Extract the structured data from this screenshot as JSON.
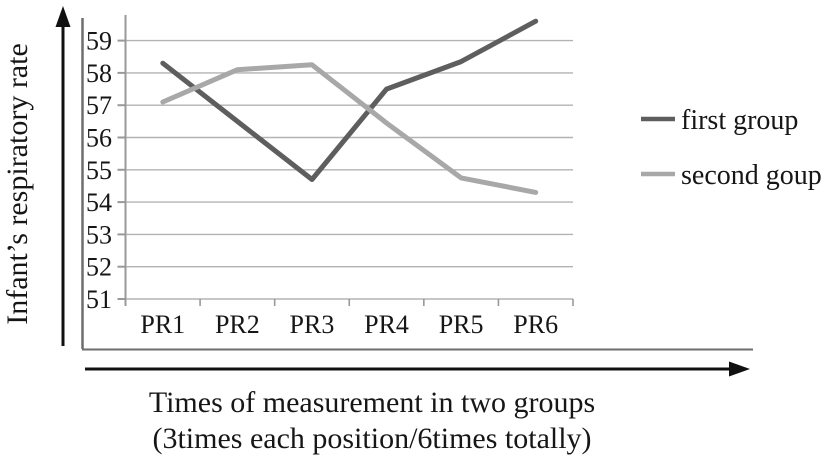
{
  "chart_data": {
    "type": "line",
    "categories": [
      "PR1",
      "PR2",
      "PR3",
      "PR4",
      "PR5",
      "PR6"
    ],
    "series": [
      {
        "name": "first group",
        "color": "#5e5e5e",
        "values": [
          58.3,
          56.5,
          54.7,
          57.5,
          58.35,
          59.6
        ]
      },
      {
        "name": "second goup",
        "color": "#a8a8a8",
        "values": [
          57.1,
          58.1,
          58.25,
          56.45,
          54.75,
          54.3
        ]
      }
    ],
    "y_ticks": [
      51,
      52,
      53,
      54,
      55,
      56,
      57,
      58,
      59
    ],
    "ylim": [
      50.8,
      59.8
    ],
    "ylabel": "Infant’s respiratory rate",
    "xlabel_line1": "Times of measurement in two groups",
    "xlabel_line2": "(3times each position/6times totally)",
    "grid": "horizontal",
    "legend_position": "right"
  },
  "colors": {
    "gridline": "#b3b3b3",
    "axis_line": "#999999",
    "border_line": "#6e6e6e",
    "arrow": "#111111",
    "text": "#161616",
    "background": "#ffffff"
  }
}
